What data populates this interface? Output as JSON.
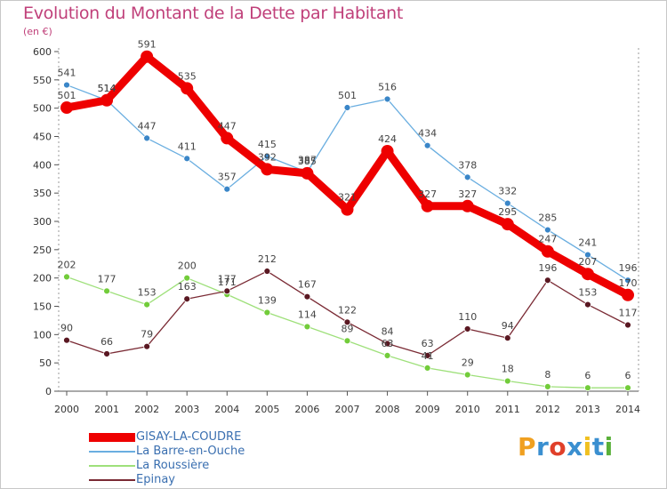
{
  "header": {
    "title": "Evolution du Montant de la Dette par Habitant",
    "subtitle": "(en €)"
  },
  "logo": {
    "text": "Proxiti",
    "colors": [
      "#f0a020",
      "#3a8fd0",
      "#e0402a",
      "#3a8fd0",
      "#f0c020",
      "#3a8fd0",
      "#5ab03a"
    ]
  },
  "chart_data": {
    "type": "line",
    "x": [
      "2000",
      "2001",
      "2002",
      "2003",
      "2004",
      "2005",
      "2006",
      "2007",
      "2008",
      "2009",
      "2010",
      "2011",
      "2012",
      "2013",
      "2014"
    ],
    "ylim": [
      0,
      600
    ],
    "yticks": [
      0,
      50,
      100,
      150,
      200,
      250,
      300,
      350,
      400,
      450,
      500,
      550,
      600
    ],
    "grid": false,
    "legend_position": "bottom-left",
    "series": [
      {
        "name": "GISAY-LA-COUDRE",
        "color": "#ee0000",
        "emphasis": true,
        "values": [
          501,
          514,
          591,
          535,
          447,
          392,
          385,
          321,
          424,
          327,
          327,
          295,
          247,
          207,
          170
        ]
      },
      {
        "name": "La Barre-en-Ouche",
        "color": "#6aaee0",
        "point_color": "#3a86c8",
        "emphasis": false,
        "values": [
          541,
          514,
          447,
          411,
          357,
          415,
          387,
          501,
          516,
          434,
          378,
          332,
          285,
          241,
          196
        ]
      },
      {
        "name": "La Roussière",
        "color": "#9ee07a",
        "point_color": "#72cc3a",
        "emphasis": false,
        "values": [
          202,
          177,
          153,
          200,
          171,
          139,
          114,
          89,
          63,
          41,
          29,
          18,
          8,
          6,
          6
        ]
      },
      {
        "name": "Epinay",
        "color": "#7a2a34",
        "point_color": "#5a1822",
        "emphasis": false,
        "values": [
          90,
          66,
          79,
          163,
          177,
          212,
          167,
          122,
          84,
          63,
          110,
          94,
          196,
          153,
          117
        ]
      }
    ]
  }
}
